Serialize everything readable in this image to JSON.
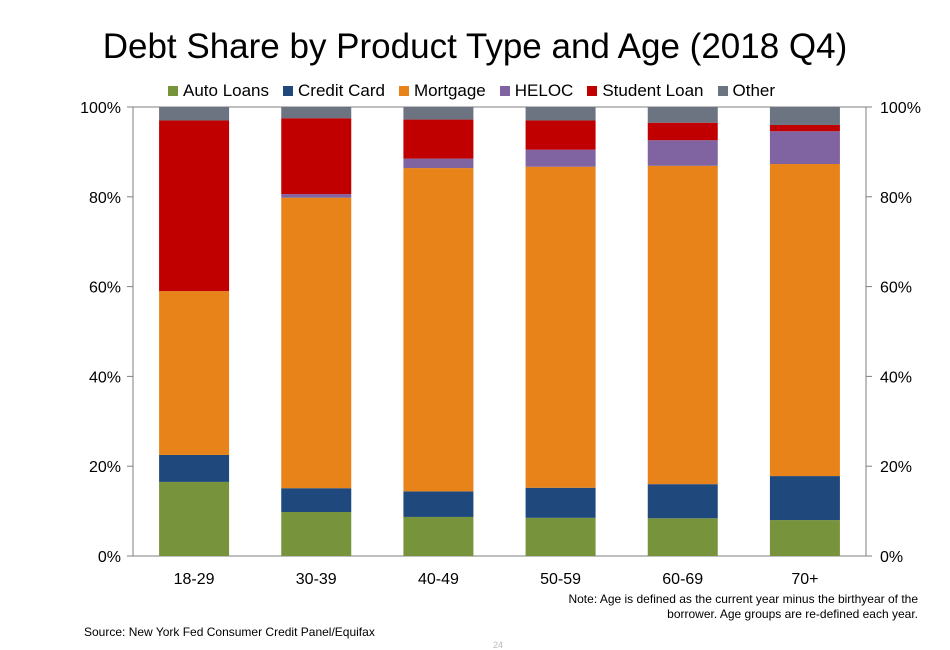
{
  "title": "Debt Share by Product Type and Age (2018 Q4)",
  "note": {
    "line1": "Note: Age is defined as the current year minus the birthyear of the",
    "line2": "borrower. Age groups are re-defined each year."
  },
  "source": "Source: New York Fed Consumer Credit Panel/Equifax",
  "page_number": "24",
  "chart_data": {
    "type": "bar",
    "stacked": true,
    "categories": [
      "18-29",
      "30-39",
      "40-49",
      "50-59",
      "60-69",
      "70+"
    ],
    "ylim": [
      0,
      100
    ],
    "yticks": [
      "0%",
      "20%",
      "40%",
      "60%",
      "80%",
      "100%"
    ],
    "y_axis_sides": [
      "left",
      "right"
    ],
    "legend_position": "top",
    "series": [
      {
        "name": "Auto Loans",
        "color": "#77933c",
        "values": [
          16.5,
          9.8,
          8.7,
          8.5,
          8.4,
          8.0
        ]
      },
      {
        "name": "Credit Card",
        "color": "#1f497d",
        "values": [
          6.0,
          5.3,
          5.7,
          6.7,
          7.6,
          9.8
        ]
      },
      {
        "name": "Mortgage",
        "color": "#e8831a",
        "values": [
          36.5,
          64.7,
          72.0,
          71.5,
          70.9,
          69.5
        ]
      },
      {
        "name": "HELOC",
        "color": "#8064a2",
        "values": [
          0.0,
          0.8,
          2.1,
          3.8,
          5.7,
          7.3
        ]
      },
      {
        "name": "Student Loan",
        "color": "#c00000",
        "values": [
          38.0,
          16.9,
          8.7,
          6.5,
          3.9,
          1.4
        ]
      },
      {
        "name": "Other",
        "color": "#6b7480",
        "values": [
          3.0,
          2.5,
          2.8,
          3.0,
          3.5,
          4.0
        ]
      }
    ]
  }
}
